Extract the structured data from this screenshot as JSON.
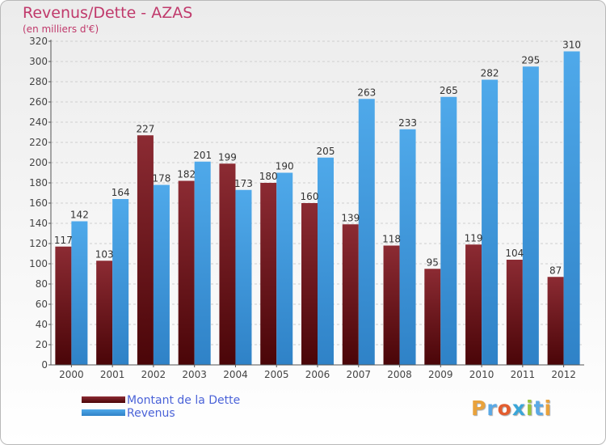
{
  "chart_data": {
    "type": "bar",
    "title": "Revenus/Dette - AZAS",
    "subtitle": "(en milliers d'€)",
    "categories": [
      "2000",
      "2001",
      "2002",
      "2003",
      "2004",
      "2005",
      "2006",
      "2007",
      "2008",
      "2009",
      "2010",
      "2011",
      "2012"
    ],
    "series": [
      {
        "name": "Montant de la Dette",
        "color": "#7a1f26",
        "values": [
          117,
          103,
          227,
          182,
          199,
          180,
          160,
          139,
          118,
          95,
          119,
          104,
          87
        ]
      },
      {
        "name": "Revenus",
        "color": "#3d9be3",
        "values": [
          142,
          164,
          178,
          201,
          173,
          190,
          205,
          263,
          233,
          265,
          282,
          295,
          310
        ]
      }
    ],
    "ylim": [
      0,
      320
    ],
    "ytick_step": 20,
    "grid": true,
    "legend_position": "bottom-left",
    "show_data_labels": true
  },
  "branding": {
    "logo_letters": [
      "P",
      "r",
      "o",
      "x",
      "i",
      "t",
      "i"
    ],
    "logo_colors": [
      "#e9a23b",
      "#5aa9e6",
      "#e35d2f",
      "#3aa6d8",
      "#9ac43b",
      "#5aa9e6",
      "#e9a23b"
    ]
  }
}
